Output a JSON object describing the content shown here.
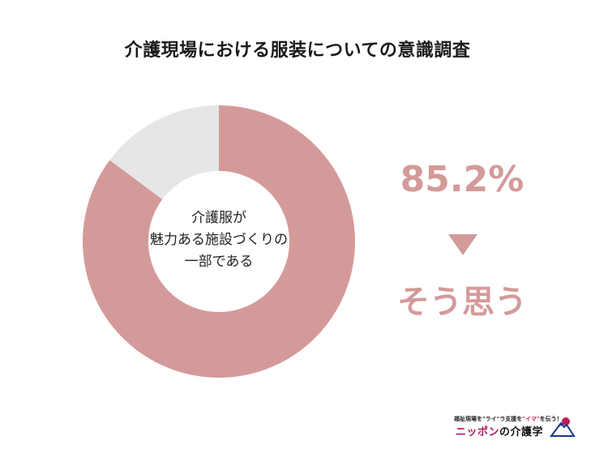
{
  "chart_data": {
    "type": "donut",
    "title": "介護現場における服装についての意識調査",
    "center_label": [
      "介護服が",
      "魅力ある施設づくりの",
      "一部である"
    ],
    "series": [
      {
        "values": [
          85.2,
          14.8
        ]
      }
    ],
    "colors": [
      "#d49a9a",
      "#e6e6e6"
    ],
    "highlight": {
      "value_label": "85.2%",
      "answer_label": "そう思う"
    }
  },
  "colors": {
    "accent": "#d49a9a",
    "text_dark": "#1a1a1a"
  },
  "logo": {
    "tagline_pre": "福祉現場を\"ライ\"ラ支援を",
    "tagline_highlight": "\"イマ\"",
    "tagline_post": "を伝う！",
    "name_main": "ニッポン",
    "name_mid": "の",
    "name_end": "介護学"
  }
}
